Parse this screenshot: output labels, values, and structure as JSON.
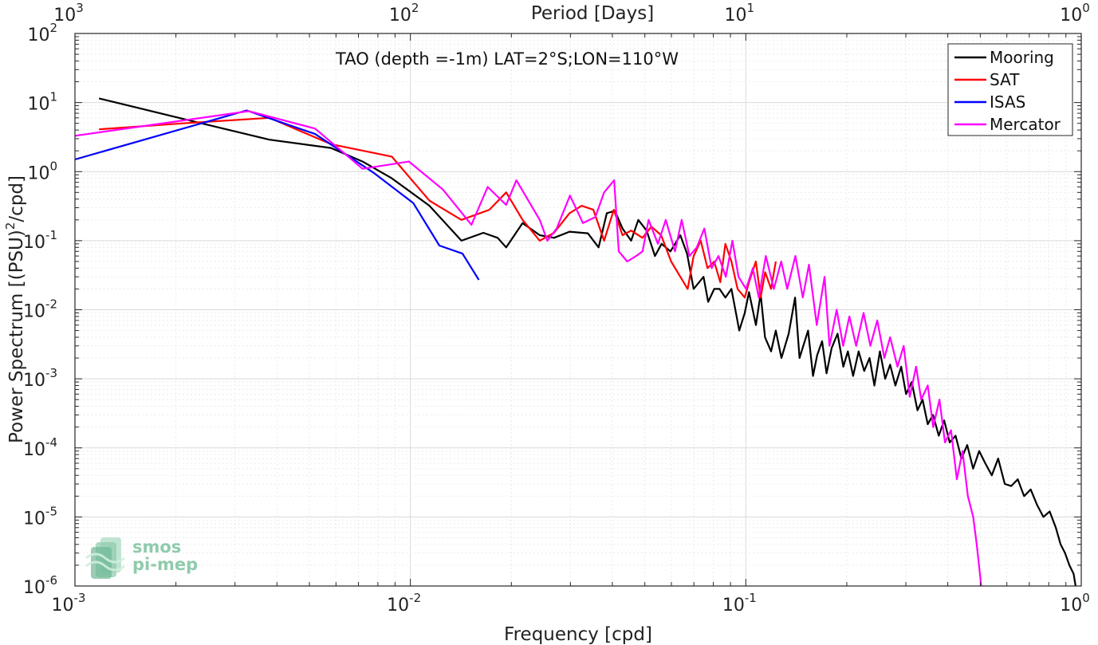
{
  "chart_data": {
    "type": "line",
    "title": "TAO (depth =-1m) LAT=2°S;LON=110°W",
    "xlabel": "Frequency [cpd]",
    "ylabel": "Power Spectrum [(PSU)",
    "ylabel_sup": "2",
    "ylabel_tail": "/cpd]",
    "top_xlabel": "Period [Days]",
    "x_scale": "log",
    "y_scale": "log",
    "xlim": [
      0.001,
      1
    ],
    "ylim": [
      1e-06,
      100
    ],
    "grid": true,
    "legend_position": "top-right",
    "x_ticks": [
      {
        "base": "10",
        "exp": "-3"
      },
      {
        "base": "10",
        "exp": "-2"
      },
      {
        "base": "10",
        "exp": "-1"
      },
      {
        "base": "10",
        "exp": "0"
      }
    ],
    "y_ticks": [
      {
        "base": "10",
        "exp": "-6"
      },
      {
        "base": "10",
        "exp": "-5"
      },
      {
        "base": "10",
        "exp": "-4"
      },
      {
        "base": "10",
        "exp": "-3"
      },
      {
        "base": "10",
        "exp": "-2"
      },
      {
        "base": "10",
        "exp": "-1"
      },
      {
        "base": "10",
        "exp": "0"
      },
      {
        "base": "10",
        "exp": "1"
      },
      {
        "base": "10",
        "exp": "2"
      }
    ],
    "top_ticks": [
      {
        "base": "10",
        "exp": "3"
      },
      {
        "base": "10",
        "exp": "2"
      },
      {
        "base": "10",
        "exp": "1"
      },
      {
        "base": "10",
        "exp": "0"
      }
    ],
    "series": [
      {
        "name": "Mooring",
        "color": "#000000",
        "points": [
          [
            0.00118,
            11.5
          ],
          [
            0.0021,
            5.8
          ],
          [
            0.0038,
            2.9
          ],
          [
            0.0058,
            2.2
          ],
          [
            0.0072,
            1.4
          ],
          [
            0.0088,
            0.8
          ],
          [
            0.0114,
            0.32
          ],
          [
            0.0142,
            0.1
          ],
          [
            0.0165,
            0.13
          ],
          [
            0.0182,
            0.11
          ],
          [
            0.0193,
            0.08
          ],
          [
            0.0216,
            0.18
          ],
          [
            0.0243,
            0.12
          ],
          [
            0.0268,
            0.11
          ],
          [
            0.0298,
            0.135
          ],
          [
            0.0338,
            0.128
          ],
          [
            0.0364,
            0.08
          ],
          [
            0.0385,
            0.25
          ],
          [
            0.0407,
            0.27
          ],
          [
            0.0429,
            0.15
          ],
          [
            0.0455,
            0.1
          ],
          [
            0.0478,
            0.2
          ],
          [
            0.0506,
            0.14
          ],
          [
            0.0536,
            0.06
          ],
          [
            0.0561,
            0.09
          ],
          [
            0.0596,
            0.07
          ],
          [
            0.0638,
            0.12
          ],
          [
            0.0668,
            0.065
          ],
          [
            0.0699,
            0.02
          ],
          [
            0.0748,
            0.03
          ],
          [
            0.0772,
            0.013
          ],
          [
            0.0805,
            0.02
          ],
          [
            0.0835,
            0.02
          ],
          [
            0.0869,
            0.015
          ],
          [
            0.0906,
            0.02
          ],
          [
            0.0956,
            0.005
          ],
          [
            0.0993,
            0.009
          ],
          [
            0.1022,
            0.018
          ],
          [
            0.1072,
            0.006
          ],
          [
            0.1107,
            0.017
          ],
          [
            0.1141,
            0.004
          ],
          [
            0.1189,
            0.0025
          ],
          [
            0.1228,
            0.005
          ],
          [
            0.1277,
            0.002
          ],
          [
            0.1342,
            0.0045
          ],
          [
            0.1402,
            0.015
          ],
          [
            0.1446,
            0.002
          ],
          [
            0.1533,
            0.005
          ],
          [
            0.1586,
            0.0011
          ],
          [
            0.1632,
            0.0022
          ],
          [
            0.1688,
            0.0035
          ],
          [
            0.1741,
            0.0012
          ],
          [
            0.1803,
            0.0028
          ],
          [
            0.1877,
            0.0045
          ],
          [
            0.1953,
            0.0015
          ],
          [
            0.2015,
            0.0025
          ],
          [
            0.2089,
            0.0011
          ],
          [
            0.2169,
            0.0025
          ],
          [
            0.2254,
            0.0013
          ],
          [
            0.2338,
            0.002
          ],
          [
            0.2418,
            0.0008
          ],
          [
            0.2511,
            0.0025
          ],
          [
            0.2603,
            0.001
          ],
          [
            0.2692,
            0.0016
          ],
          [
            0.2792,
            0.0008
          ],
          [
            0.2905,
            0.0015
          ],
          [
            0.3005,
            0.0006
          ],
          [
            0.3124,
            0.0009
          ],
          [
            0.3249,
            0.00035
          ],
          [
            0.3365,
            0.0005
          ],
          [
            0.3487,
            0.00022
          ],
          [
            0.3614,
            0.0003
          ],
          [
            0.3761,
            0.00015
          ],
          [
            0.3902,
            0.00025
          ],
          [
            0.4052,
            0.00012
          ],
          [
            0.4221,
            0.00015
          ],
          [
            0.4393,
            7e-05
          ],
          [
            0.4572,
            0.00011
          ],
          [
            0.4761,
            5e-05
          ],
          [
            0.4962,
            9e-05
          ],
          [
            0.5174,
            6e-05
          ],
          [
            0.5411,
            4e-05
          ],
          [
            0.5652,
            7e-05
          ],
          [
            0.5917,
            3e-05
          ],
          [
            0.6182,
            2.8e-05
          ],
          [
            0.6467,
            3.5e-05
          ],
          [
            0.6754,
            2e-05
          ],
          [
            0.7066,
            2.5e-05
          ],
          [
            0.7381,
            1.5e-05
          ],
          [
            0.7712,
            1e-05
          ],
          [
            0.8052,
            1.2e-05
          ],
          [
            0.8397,
            7e-06
          ],
          [
            0.8678,
            4e-06
          ],
          [
            0.8946,
            3e-06
          ],
          [
            0.9218,
            2e-06
          ],
          [
            0.9489,
            1.5e-06
          ],
          [
            0.9619,
            1e-06
          ]
        ]
      },
      {
        "name": "SAT",
        "color": "#ff0000",
        "points": [
          [
            0.00118,
            4.1
          ],
          [
            0.0021,
            5
          ],
          [
            0.0038,
            6
          ],
          [
            0.0058,
            2.5
          ],
          [
            0.0088,
            1.65
          ],
          [
            0.0114,
            0.38
          ],
          [
            0.0142,
            0.2
          ],
          [
            0.0172,
            0.28
          ],
          [
            0.0193,
            0.5
          ],
          [
            0.0216,
            0.2
          ],
          [
            0.0243,
            0.1
          ],
          [
            0.0268,
            0.13
          ],
          [
            0.0298,
            0.25
          ],
          [
            0.0324,
            0.32
          ],
          [
            0.0351,
            0.28
          ],
          [
            0.0378,
            0.1
          ],
          [
            0.0404,
            0.28
          ],
          [
            0.0429,
            0.12
          ],
          [
            0.0455,
            0.14
          ],
          [
            0.0492,
            0.11
          ],
          [
            0.0523,
            0.16
          ],
          [
            0.0559,
            0.12
          ],
          [
            0.0599,
            0.05
          ],
          [
            0.0638,
            0.03
          ],
          [
            0.0671,
            0.02
          ],
          [
            0.0699,
            0.06
          ],
          [
            0.0734,
            0.1
          ],
          [
            0.0769,
            0.04
          ],
          [
            0.0805,
            0.05
          ],
          [
            0.0839,
            0.025
          ],
          [
            0.0869,
            0.09
          ],
          [
            0.0906,
            0.05
          ],
          [
            0.0945,
            0.02
          ],
          [
            0.0993,
            0.015
          ],
          [
            0.1022,
            0.025
          ],
          [
            0.1071,
            0.05
          ],
          [
            0.1107,
            0.015
          ],
          [
            0.1142,
            0.035
          ],
          [
            0.1189,
            0.02
          ],
          [
            0.1228,
            0.05
          ]
        ]
      },
      {
        "name": "ISAS",
        "color": "#0000ff",
        "points": [
          [
            0.001,
            1.5
          ],
          [
            0.00325,
            7.7
          ],
          [
            0.0052,
            3.5
          ],
          [
            0.0078,
            0.95
          ],
          [
            0.0102,
            0.35
          ],
          [
            0.0122,
            0.085
          ],
          [
            0.0143,
            0.065
          ],
          [
            0.016,
            0.027
          ]
        ]
      },
      {
        "name": "Mercator",
        "color": "#ff00ff",
        "points": [
          [
            0.001,
            3.3
          ],
          [
            0.0021,
            5.5
          ],
          [
            0.0033,
            7.5
          ],
          [
            0.0052,
            4.2
          ],
          [
            0.0072,
            1.1
          ],
          [
            0.0099,
            1.4
          ],
          [
            0.0125,
            0.55
          ],
          [
            0.0152,
            0.17
          ],
          [
            0.017,
            0.6
          ],
          [
            0.0193,
            0.33
          ],
          [
            0.0207,
            0.75
          ],
          [
            0.0243,
            0.2
          ],
          [
            0.0256,
            0.1
          ],
          [
            0.0273,
            0.15
          ],
          [
            0.0299,
            0.45
          ],
          [
            0.0327,
            0.18
          ],
          [
            0.0356,
            0.22
          ],
          [
            0.0378,
            0.5
          ],
          [
            0.0405,
            0.75
          ],
          [
            0.0418,
            0.07
          ],
          [
            0.0443,
            0.05
          ],
          [
            0.0471,
            0.06
          ],
          [
            0.0492,
            0.07
          ],
          [
            0.0513,
            0.2
          ],
          [
            0.0547,
            0.09
          ],
          [
            0.0577,
            0.2
          ],
          [
            0.0615,
            0.07
          ],
          [
            0.0644,
            0.2
          ],
          [
            0.0679,
            0.06
          ],
          [
            0.0714,
            0.08
          ],
          [
            0.0752,
            0.15
          ],
          [
            0.0791,
            0.04
          ],
          [
            0.0829,
            0.06
          ],
          [
            0.0872,
            0.03
          ],
          [
            0.0912,
            0.1
          ],
          [
            0.0951,
            0.03
          ],
          [
            0.1002,
            0.02
          ],
          [
            0.1049,
            0.04
          ],
          [
            0.1093,
            0.015
          ],
          [
            0.1147,
            0.06
          ],
          [
            0.1212,
            0.02
          ],
          [
            0.1275,
            0.05
          ],
          [
            0.1329,
            0.02
          ],
          [
            0.1405,
            0.06
          ],
          [
            0.1479,
            0.015
          ],
          [
            0.1542,
            0.045
          ],
          [
            0.1627,
            0.006
          ],
          [
            0.1717,
            0.03
          ],
          [
            0.1776,
            0.003
          ],
          [
            0.1866,
            0.01
          ],
          [
            0.1951,
            0.003
          ],
          [
            0.2036,
            0.008
          ],
          [
            0.2133,
            0.003
          ],
          [
            0.2244,
            0.009
          ],
          [
            0.2351,
            0.003
          ],
          [
            0.2466,
            0.007
          ],
          [
            0.2589,
            0.002
          ],
          [
            0.2693,
            0.004
          ],
          [
            0.2832,
            0.0015
          ],
          [
            0.2955,
            0.003
          ],
          [
            0.3081,
            0.00055
          ],
          [
            0.3219,
            0.0015
          ],
          [
            0.3334,
            0.0005
          ],
          [
            0.3487,
            0.0008
          ],
          [
            0.3619,
            0.0002
          ],
          [
            0.3779,
            0.0005
          ],
          [
            0.3925,
            0.00012
          ],
          [
            0.4091,
            0.00018
          ],
          [
            0.4258,
            3.5e-05
          ],
          [
            0.4426,
            9e-05
          ],
          [
            0.4592,
            2e-05
          ],
          [
            0.4762,
            1e-05
          ],
          [
            0.4878,
            4e-06
          ],
          [
            0.4967,
            1.8e-06
          ],
          [
            0.503,
            1e-06
          ]
        ]
      }
    ],
    "watermark": {
      "line1": "smos",
      "line2": "pi-mep"
    }
  }
}
